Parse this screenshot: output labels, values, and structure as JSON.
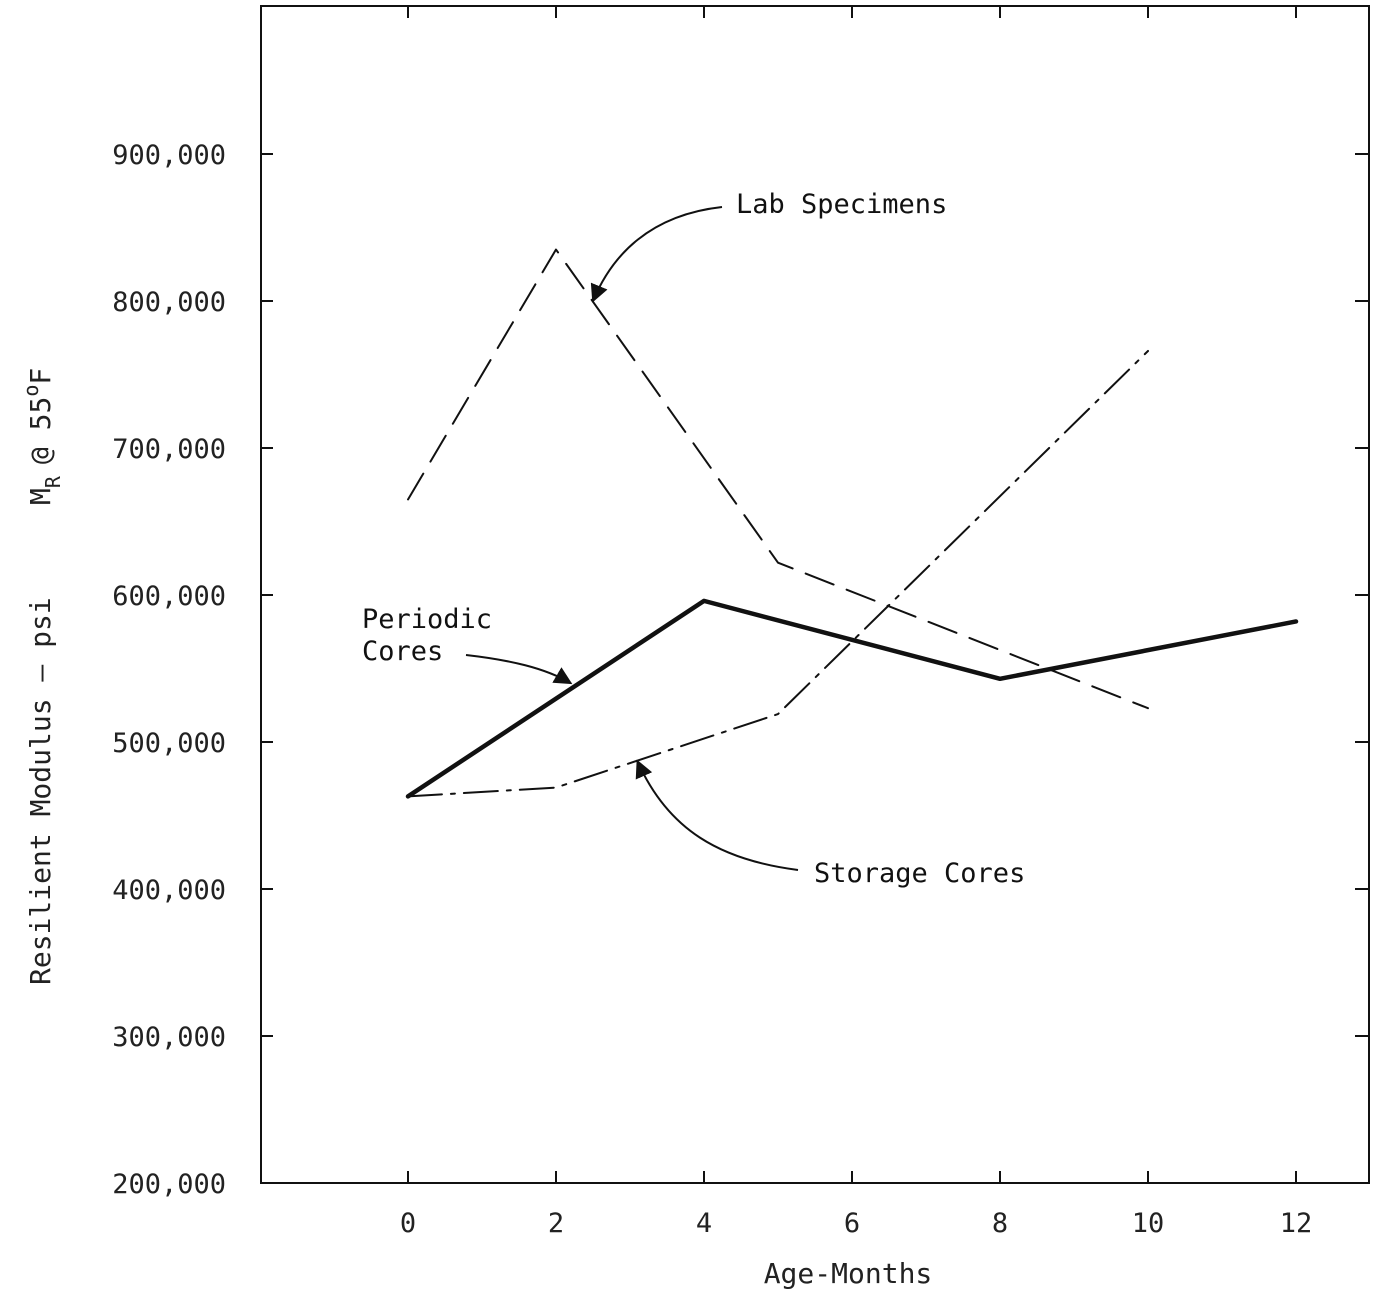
{
  "chart_data": {
    "type": "line",
    "xlabel": "Age-Months",
    "ylabel_main": "Resilient Modulus — psi",
    "ylabel_symbol": "M",
    "ylabel_subscript": "R",
    "ylabel_temp": "@ 55",
    "ylabel_degree": "o",
    "ylabel_unit": "F",
    "xlim": [
      -2,
      13
    ],
    "ylim": [
      200000,
      1000000
    ],
    "x_ticks": [
      0,
      2,
      4,
      6,
      8,
      10,
      12
    ],
    "x_tick_labels": [
      "0",
      "2",
      "4",
      "6",
      "8",
      "10",
      "12"
    ],
    "y_ticks": [
      200000,
      300000,
      400000,
      500000,
      600000,
      700000,
      800000,
      900000
    ],
    "y_tick_labels": [
      "200,000",
      "300,000",
      "400,000",
      "500,000",
      "600,000",
      "700,000",
      "800,000",
      "900,000"
    ],
    "grid": false,
    "series": [
      {
        "name": "Lab Specimens",
        "style": "dashed",
        "color": "#111111",
        "x": [
          0,
          2,
          5,
          10
        ],
        "y": [
          665000,
          835000,
          622000,
          523000
        ]
      },
      {
        "name": "Periodic Cores",
        "style": "solid-bold",
        "color": "#111111",
        "x": [
          0,
          4,
          8,
          12
        ],
        "y": [
          463000,
          596000,
          543000,
          582000
        ]
      },
      {
        "name": "Storage Cores",
        "style": "dash-dot",
        "color": "#111111",
        "x": [
          0,
          2,
          5,
          10
        ],
        "y": [
          463000,
          469000,
          519000,
          766000
        ]
      }
    ],
    "annotations": [
      {
        "lines": [
          "Lab Specimens"
        ],
        "arrow_to": [
          2.5,
          800000
        ]
      },
      {
        "lines": [
          "Periodic",
          "Cores"
        ],
        "arrow_to": [
          2.2,
          540000
        ]
      },
      {
        "lines": [
          "Storage Cores"
        ],
        "arrow_to": [
          3.1,
          487000
        ]
      }
    ]
  }
}
